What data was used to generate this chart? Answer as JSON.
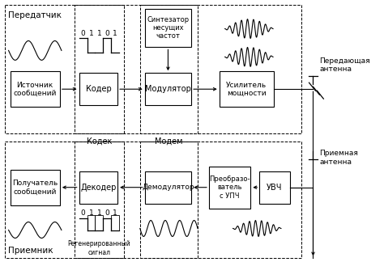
{
  "bg_color": "#ffffff",
  "transmitter_label": "Передатчик",
  "receiver_label": "Приемник",
  "transmit_antenna_label": "Передающая\nантенна",
  "receive_antenna_label": "Приемная\nантенна",
  "kodek_label": "Кодек",
  "modem_label": "Модем",
  "regen_label": "Регенерированный\nсигнал",
  "bits": [
    0,
    1,
    1,
    0,
    1
  ]
}
